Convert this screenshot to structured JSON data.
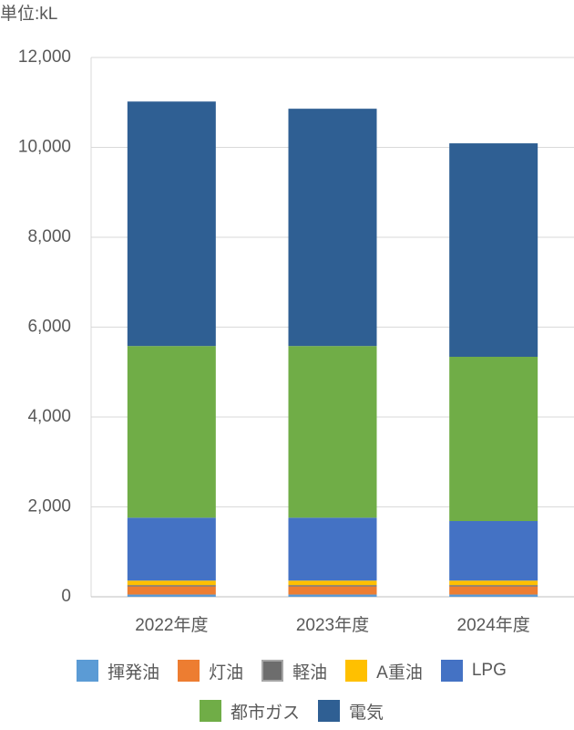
{
  "chart_data": {
    "type": "stacked_bar",
    "unit_label": "単位:kL",
    "categories": [
      "2022年度",
      "2023年度",
      "2024年度"
    ],
    "series": [
      {
        "name": "揮発油",
        "color": "#5b9bd5",
        "values": [
          50,
          50,
          50
        ]
      },
      {
        "name": "灯油",
        "color": "#ed7d31",
        "values": [
          180,
          180,
          180
        ]
      },
      {
        "name": "軽油",
        "color": "#6d6d6d",
        "values": [
          30,
          30,
          30
        ]
      },
      {
        "name": "A重油",
        "color": "#ffc000",
        "values": [
          100,
          100,
          100
        ]
      },
      {
        "name": "LPG",
        "color": "#4472c4",
        "values": [
          1400,
          1400,
          1325
        ]
      },
      {
        "name": "都市ガス",
        "color": "#70ad47",
        "values": [
          3820,
          3820,
          3655
        ]
      },
      {
        "name": "電気",
        "color": "#2f5f93",
        "values": [
          5440,
          5280,
          4750
        ]
      }
    ],
    "ylim": [
      0,
      12000
    ],
    "yticks": [
      0,
      {
        "value": 2000,
        "label": "2,000"
      },
      {
        "value": 4000,
        "label": "4,000"
      },
      {
        "value": 6000,
        "label": "6,000"
      },
      {
        "value": 8000,
        "label": "8,000"
      },
      {
        "value": 10000,
        "label": "10,000"
      },
      {
        "value": 12000,
        "label": "12,000"
      }
    ],
    "grid": true
  }
}
